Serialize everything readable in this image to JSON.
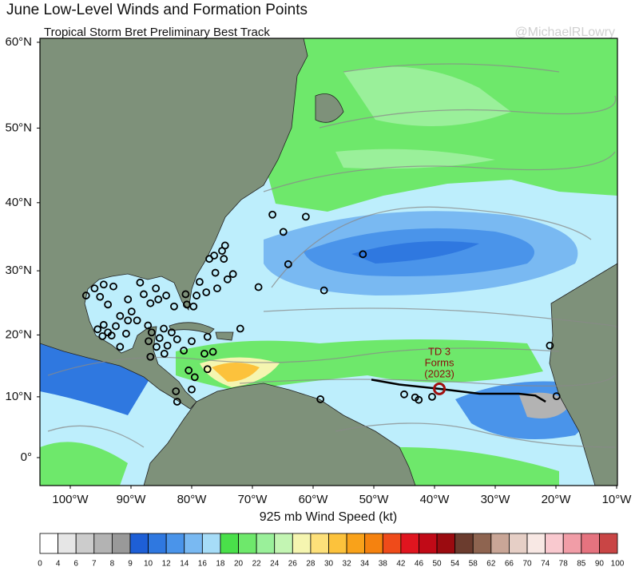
{
  "title": "June Low-Level Winds and Formation Points",
  "subtitle": "Tropical Storm Bret Preliminary Best Track",
  "watermark": "@MichaelRLowry",
  "map": {
    "lat_ticks": [
      {
        "value": 60,
        "label": "60°N"
      },
      {
        "value": 50,
        "label": "50°N"
      },
      {
        "value": 40,
        "label": "40°N"
      },
      {
        "value": 30,
        "label": "30°N"
      },
      {
        "value": 20,
        "label": "20°N"
      },
      {
        "value": 10,
        "label": "10°N"
      },
      {
        "value": 0,
        "label": "0°"
      }
    ],
    "lon_ticks": [
      {
        "value": -100,
        "label": "100°W"
      },
      {
        "value": -90,
        "label": "90°W"
      },
      {
        "value": -80,
        "label": "80°W"
      },
      {
        "value": -70,
        "label": "70°W"
      },
      {
        "value": -60,
        "label": "60°W"
      },
      {
        "value": -50,
        "label": "50°W"
      },
      {
        "value": -40,
        "label": "40°W"
      },
      {
        "value": -30,
        "label": "30°W"
      },
      {
        "value": -20,
        "label": "20°W"
      },
      {
        "value": -10,
        "label": "10°W"
      }
    ],
    "formation_points": [
      [
        -66.7,
        38.3
      ],
      [
        -61.2,
        38
      ],
      [
        -64.9,
        35.8
      ],
      [
        -64.1,
        31
      ],
      [
        -51.8,
        32.5
      ],
      [
        -69,
        27.5
      ],
      [
        -58.2,
        27
      ],
      [
        -72,
        21
      ],
      [
        -75.8,
        27.3
      ],
      [
        -74.1,
        28.7
      ],
      [
        -73.2,
        29.5
      ],
      [
        -74.7,
        31.8
      ],
      [
        -74.5,
        33.8
      ],
      [
        -75,
        33
      ],
      [
        -76.3,
        32.3
      ],
      [
        -77.1,
        31.8
      ],
      [
        -76.1,
        29.7
      ],
      [
        -78.7,
        28.3
      ],
      [
        -77.6,
        26.7
      ],
      [
        -79.2,
        26.2
      ],
      [
        -81,
        26.4
      ],
      [
        -80.8,
        24.8
      ],
      [
        -79.7,
        24.5
      ],
      [
        -97.4,
        26.2
      ],
      [
        -96,
        27.3
      ],
      [
        -94.5,
        27.9
      ],
      [
        -92.9,
        27.6
      ],
      [
        -95.1,
        26
      ],
      [
        -93.8,
        24.8
      ],
      [
        -90.5,
        25.6
      ],
      [
        -87.9,
        26.4
      ],
      [
        -86.8,
        25
      ],
      [
        -85.5,
        25.6
      ],
      [
        -84.2,
        26.2
      ],
      [
        -82.9,
        24.5
      ],
      [
        -85.9,
        27.3
      ],
      [
        -88.5,
        28.2
      ],
      [
        -89.9,
        23.7
      ],
      [
        -91.8,
        23
      ],
      [
        -90.5,
        22.3
      ],
      [
        -94.5,
        21.6
      ],
      [
        -95.5,
        20.9
      ],
      [
        -93.8,
        20.4
      ],
      [
        -94.7,
        19.8
      ],
      [
        -93.2,
        19.9
      ],
      [
        -92.5,
        21.4
      ],
      [
        -90.8,
        20.2
      ],
      [
        -89,
        22.3
      ],
      [
        -87.2,
        21.5
      ],
      [
        -86.6,
        20.4
      ],
      [
        -84.6,
        21
      ],
      [
        -83.3,
        20.4
      ],
      [
        -85.3,
        19.5
      ],
      [
        -87.1,
        19
      ],
      [
        -85.8,
        18.1
      ],
      [
        -84,
        18.3
      ],
      [
        -82.4,
        19.3
      ],
      [
        -84.5,
        17
      ],
      [
        -86.8,
        16.5
      ],
      [
        -91.8,
        18.1
      ],
      [
        -81.3,
        17.5
      ],
      [
        -80,
        19
      ],
      [
        -77.4,
        19.7
      ],
      [
        -77.9,
        17
      ],
      [
        -80.5,
        14.3
      ],
      [
        -79.5,
        13.2
      ],
      [
        -80,
        11.2
      ],
      [
        -82.6,
        10.9
      ],
      [
        -77.4,
        14.5
      ],
      [
        -82.4,
        9.2
      ],
      [
        -76.5,
        17.3
      ],
      [
        -58.8,
        9.6
      ],
      [
        -45,
        10.4
      ],
      [
        -43.2,
        9.9
      ],
      [
        -42.6,
        9.5
      ],
      [
        -40.4,
        10
      ],
      [
        -21,
        18.3
      ],
      [
        -19.9,
        10.1
      ]
    ],
    "track": [
      [
        -50.4,
        12.8
      ],
      [
        -45.8,
        12
      ],
      [
        -39.2,
        11.3
      ],
      [
        -32.6,
        10.5
      ],
      [
        -26.1,
        10.5
      ],
      [
        -23.4,
        10.2
      ],
      [
        -21.7,
        9.2
      ]
    ],
    "td3_point": [
      -39.2,
      11.3
    ],
    "annotation": [
      "TD 3",
      "Forms",
      "(2023)"
    ]
  },
  "colorbar": {
    "title": "925 mb Wind Speed (kt)",
    "ticks": [
      0,
      4,
      6,
      7,
      8,
      9,
      10,
      12,
      14,
      16,
      18,
      20,
      22,
      24,
      26,
      28,
      30,
      32,
      34,
      38,
      42,
      46,
      50,
      54,
      58,
      62,
      66,
      70,
      74,
      78,
      85,
      90,
      100
    ],
    "colors": [
      "#ffffff",
      "#e6e6e6",
      "#cccccc",
      "#b3b3b3",
      "#999999",
      "#1e5fd6",
      "#2f78e0",
      "#4a94ea",
      "#79b9f2",
      "#a6dcf7",
      "#4ae04a",
      "#6ee86b",
      "#9af09a",
      "#c3f5b3",
      "#f5f5b0",
      "#fde07a",
      "#fcc23c",
      "#f9a21a",
      "#f5820f",
      "#ef4b1a",
      "#e0151f",
      "#c10a17",
      "#9b0b10",
      "#6b3c2e",
      "#8e6450",
      "#c9a697",
      "#e6cfc6",
      "#f8e8e4",
      "#f9c9cf",
      "#f19da7",
      "#e5737f",
      "#c94545"
    ]
  }
}
